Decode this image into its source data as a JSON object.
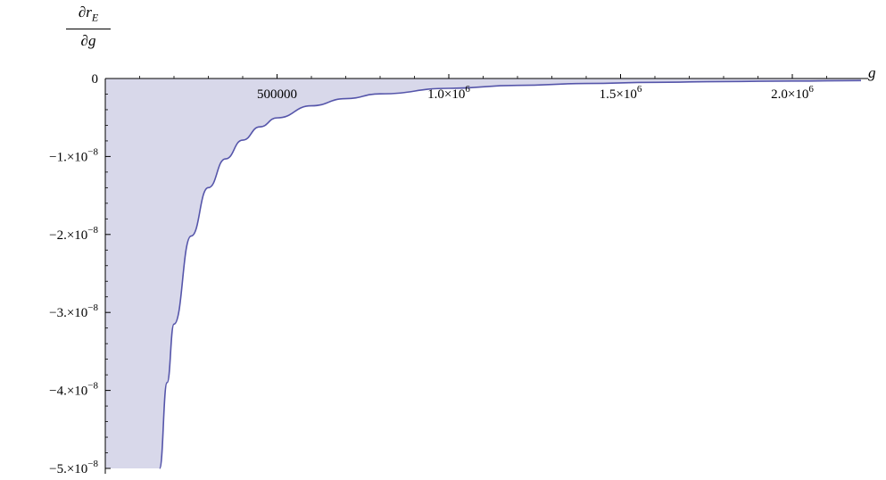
{
  "chart_data": {
    "type": "area",
    "title": "",
    "xlabel": "g",
    "ylabel": {
      "numerator": "∂r_E",
      "denominator": "∂g"
    },
    "xlim": [
      0,
      2200000.0
    ],
    "ylim": [
      -5e-08,
      0
    ],
    "x_ticks": [
      {
        "value": 500000,
        "label": "500000"
      },
      {
        "value": 1000000,
        "label": "1.0×10^6"
      },
      {
        "value": 1500000,
        "label": "1.5×10^6"
      },
      {
        "value": 2000000,
        "label": "2.0×10^6"
      }
    ],
    "y_ticks": [
      {
        "value": 0,
        "label": "0"
      },
      {
        "value": -1e-08,
        "label": "-1.×10^-8"
      },
      {
        "value": -2e-08,
        "label": "-2.×10^-8"
      },
      {
        "value": -3e-08,
        "label": "-3.×10^-8"
      },
      {
        "value": -4e-08,
        "label": "-4.×10^-8"
      },
      {
        "value": -5e-08,
        "label": "-5.×10^-8"
      }
    ],
    "series": [
      {
        "x": [
          158000,
          180000,
          200000,
          250000,
          300000,
          350000,
          400000,
          450000,
          500000,
          600000,
          700000,
          800000,
          1000000,
          1200000,
          1400000,
          1600000,
          1800000,
          2000000,
          2200000
        ],
        "y": [
          -5e-08,
          -3.9e-08,
          -3.15e-08,
          -2.02e-08,
          -1.4e-08,
          -1.03e-08,
          -7.9e-09,
          -6.2e-09,
          -5.05e-09,
          -3.5e-09,
          -2.58e-09,
          -1.97e-09,
          -1.26e-09,
          -8.8e-10,
          -6.4e-10,
          -4.9e-10,
          -3.9e-10,
          -3.2e-10,
          -2.6e-10
        ]
      }
    ],
    "fill": "to_zero",
    "colors": {
      "line": "#5555aa",
      "fill": "#d8d8ea",
      "axis": "#000000"
    },
    "grid": false,
    "legend": "none"
  }
}
